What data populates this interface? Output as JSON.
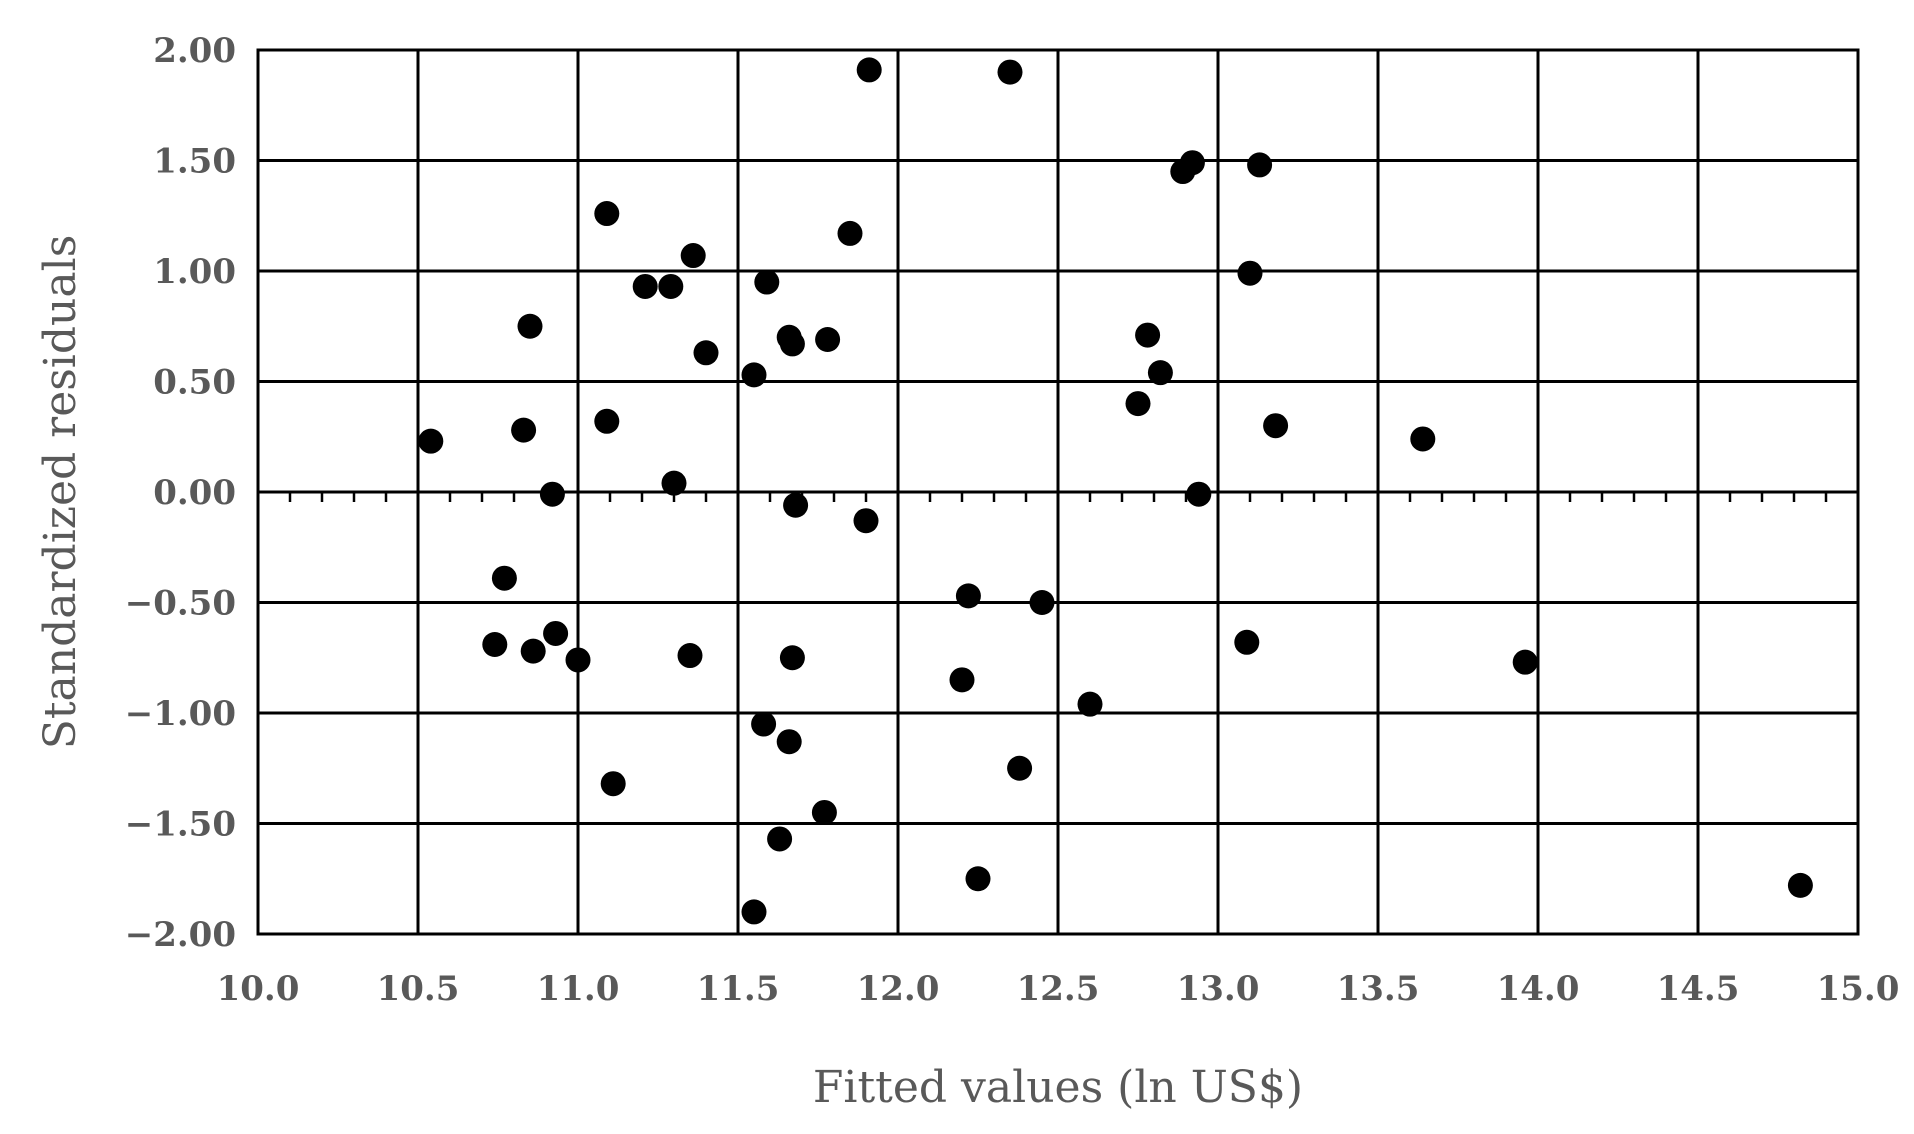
{
  "chart_data": {
    "type": "scatter",
    "xlabel": "Fitted values (ln US$)",
    "ylabel": "Standardized residuals",
    "xlim": [
      10.0,
      15.0
    ],
    "ylim": [
      -2.0,
      2.0
    ],
    "x_ticks": [
      "10.0",
      "10.5",
      "11.0",
      "11.5",
      "12.0",
      "12.5",
      "13.0",
      "13.5",
      "14.0",
      "14.5",
      "15.0"
    ],
    "y_ticks": [
      "2.00",
      "1.50",
      "1.00",
      "0.50",
      "0.00",
      "−0.50",
      "−1.00",
      "−1.50",
      "−2.00"
    ],
    "grid": true,
    "marker_color": "#000000",
    "points": [
      {
        "x": 10.54,
        "y": 0.23
      },
      {
        "x": 10.74,
        "y": -0.69
      },
      {
        "x": 10.77,
        "y": -0.39
      },
      {
        "x": 10.83,
        "y": 0.28
      },
      {
        "x": 10.85,
        "y": 0.75
      },
      {
        "x": 10.86,
        "y": -0.72
      },
      {
        "x": 10.92,
        "y": -0.01
      },
      {
        "x": 10.93,
        "y": -0.64
      },
      {
        "x": 11.0,
        "y": -0.76
      },
      {
        "x": 11.09,
        "y": 1.26
      },
      {
        "x": 11.09,
        "y": 0.32
      },
      {
        "x": 11.11,
        "y": -1.32
      },
      {
        "x": 11.21,
        "y": 0.93
      },
      {
        "x": 11.29,
        "y": 0.93
      },
      {
        "x": 11.3,
        "y": 0.04
      },
      {
        "x": 11.35,
        "y": -0.74
      },
      {
        "x": 11.36,
        "y": 1.07
      },
      {
        "x": 11.4,
        "y": 0.63
      },
      {
        "x": 11.55,
        "y": 0.53
      },
      {
        "x": 11.55,
        "y": -1.9
      },
      {
        "x": 11.58,
        "y": -1.05
      },
      {
        "x": 11.59,
        "y": 0.95
      },
      {
        "x": 11.63,
        "y": -1.57
      },
      {
        "x": 11.66,
        "y": 0.7
      },
      {
        "x": 11.66,
        "y": -1.13
      },
      {
        "x": 11.67,
        "y": 0.67
      },
      {
        "x": 11.67,
        "y": -0.75
      },
      {
        "x": 11.68,
        "y": -0.06
      },
      {
        "x": 11.77,
        "y": -1.45
      },
      {
        "x": 11.78,
        "y": 0.69
      },
      {
        "x": 11.85,
        "y": 1.17
      },
      {
        "x": 11.9,
        "y": -0.13
      },
      {
        "x": 11.91,
        "y": 1.91
      },
      {
        "x": 12.2,
        "y": -0.85
      },
      {
        "x": 12.22,
        "y": -0.47
      },
      {
        "x": 12.25,
        "y": -1.75
      },
      {
        "x": 12.35,
        "y": 1.9
      },
      {
        "x": 12.38,
        "y": -1.25
      },
      {
        "x": 12.45,
        "y": -0.5
      },
      {
        "x": 12.6,
        "y": -0.96
      },
      {
        "x": 12.75,
        "y": 0.4
      },
      {
        "x": 12.78,
        "y": 0.71
      },
      {
        "x": 12.82,
        "y": 0.54
      },
      {
        "x": 12.89,
        "y": 1.45
      },
      {
        "x": 12.92,
        "y": 1.49
      },
      {
        "x": 12.94,
        "y": -0.01
      },
      {
        "x": 13.09,
        "y": -0.68
      },
      {
        "x": 13.1,
        "y": 0.99
      },
      {
        "x": 13.13,
        "y": 1.48
      },
      {
        "x": 13.18,
        "y": 0.3
      },
      {
        "x": 13.64,
        "y": 0.24
      },
      {
        "x": 13.96,
        "y": -0.77
      },
      {
        "x": 14.82,
        "y": -1.78
      }
    ]
  }
}
